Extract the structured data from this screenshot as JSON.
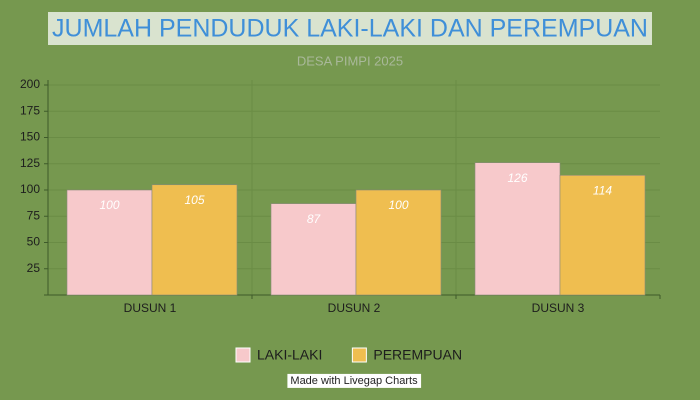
{
  "chart_data": {
    "type": "bar",
    "title": "JUMLAH PENDUDUK LAKI-LAKI DAN PEREMPUAN",
    "subtitle": "DESA PIMPI 2025",
    "categories": [
      "DUSUN 1",
      "DUSUN 2",
      "DUSUN 3"
    ],
    "series": [
      {
        "name": "LAKI-LAKI",
        "color": "#f7c9cb",
        "values": [
          100,
          87,
          126
        ]
      },
      {
        "name": "PEREMPUAN",
        "color": "#efbe50",
        "values": [
          105,
          100,
          114
        ]
      }
    ],
    "ylim": [
      0,
      200
    ],
    "yticks": [
      25,
      50,
      75,
      100,
      125,
      150,
      175,
      200
    ],
    "grid": true,
    "legend": "bottom",
    "credit": "Made with Livegap Charts"
  }
}
